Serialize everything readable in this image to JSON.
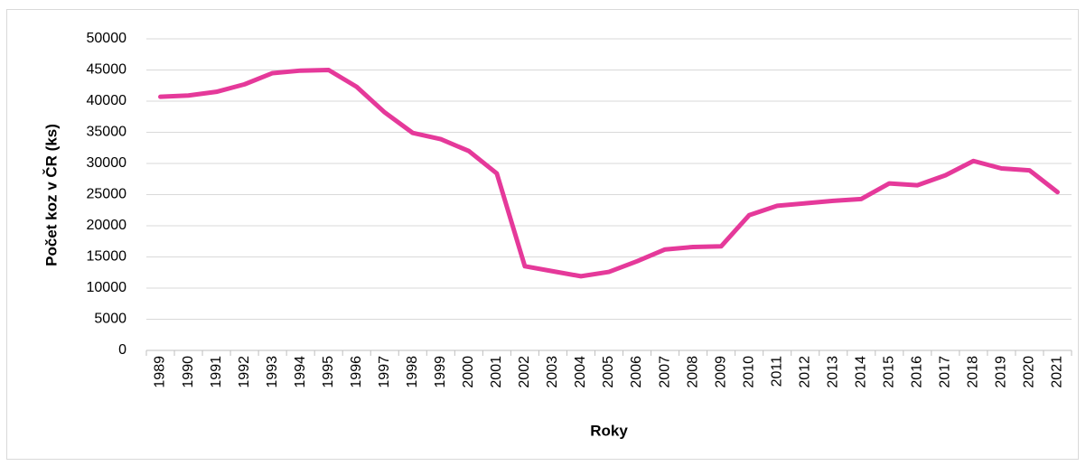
{
  "chart_data": {
    "type": "line",
    "x_label": "Roky",
    "y_label": "Počet koz v ČR (ks)",
    "categories": [
      "1989",
      "1990",
      "1991",
      "1992",
      "1993",
      "1994",
      "1995",
      "1996",
      "1997",
      "1998",
      "1999",
      "2000",
      "2001",
      "2002",
      "2003",
      "2004",
      "2005",
      "2006",
      "2007",
      "2008",
      "2009",
      "2010",
      "2011",
      "2012",
      "2013",
      "2014",
      "2015",
      "2016",
      "2017",
      "2018",
      "2019",
      "2020",
      "2021"
    ],
    "values": [
      40700,
      40900,
      41500,
      42700,
      44500,
      44900,
      45000,
      42300,
      38200,
      34900,
      33900,
      32000,
      28400,
      13500,
      12700,
      11900,
      12600,
      14300,
      16200,
      16600,
      16700,
      21700,
      23200,
      23600,
      24000,
      24300,
      26800,
      26500,
      28100,
      30400,
      29200,
      28900,
      25400
    ],
    "color": "#e5399a",
    "ylim": [
      0,
      50000
    ],
    "yticks": [
      0,
      5000,
      10000,
      15000,
      20000,
      25000,
      30000,
      35000,
      40000,
      45000,
      50000
    ],
    "grid": true
  }
}
